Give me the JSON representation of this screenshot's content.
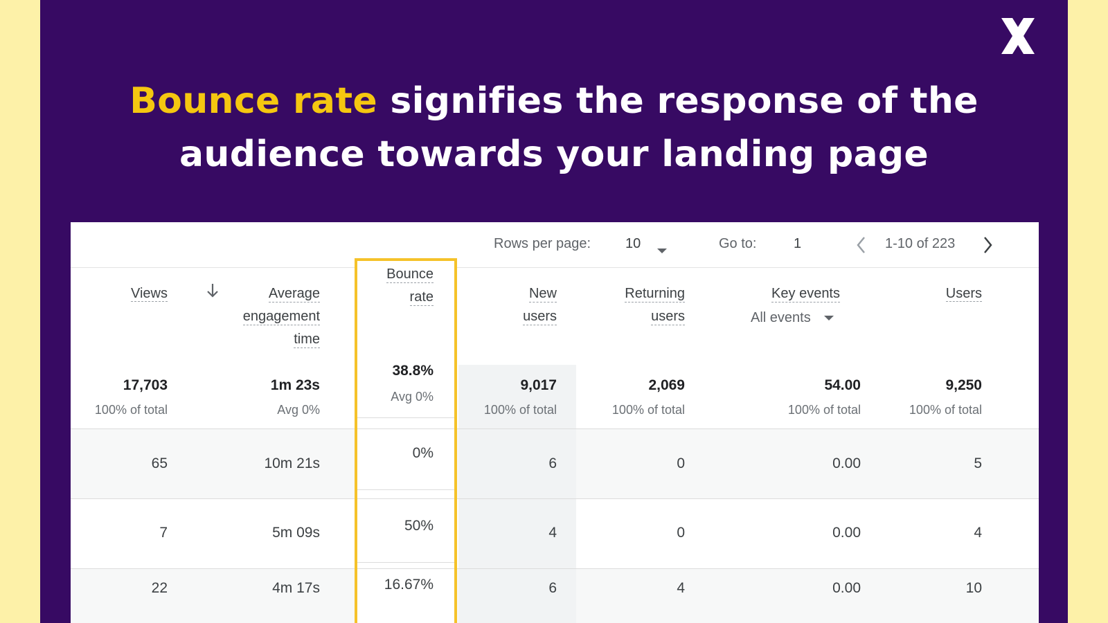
{
  "close": {
    "icon": "close-icon"
  },
  "headline": {
    "highlight": "Bounce rate",
    "line1_rest": " signifies the response of the",
    "line2": "audience towards your landing page"
  },
  "pager": {
    "rows_per_page_label": "Rows per page:",
    "rows_per_page_value": "10",
    "goto_label": "Go to:",
    "goto_value": "1",
    "range": "1-10 of 223"
  },
  "columns": {
    "views": "Views",
    "sort_icon": "arrow-down-icon",
    "avg_engagement": [
      "Average",
      "engagement",
      "time"
    ],
    "bounce_rate": [
      "Bounce",
      "rate"
    ],
    "new_users": [
      "New",
      "users"
    ],
    "returning_users": [
      "Returning",
      "users"
    ],
    "key_events": "Key events",
    "key_events_filter": "All events",
    "users": "Users"
  },
  "totals": {
    "views": {
      "value": "17,703",
      "sub": "100% of total"
    },
    "avg_engagement": {
      "value": "1m 23s",
      "sub": "Avg 0%"
    },
    "bounce_rate": {
      "value": "38.8%",
      "sub": "Avg 0%"
    },
    "new_users": {
      "value": "9,017",
      "sub": "100% of total"
    },
    "returning_users": {
      "value": "2,069",
      "sub": "100% of total"
    },
    "key_events": {
      "value": "54.00",
      "sub": "100% of total"
    },
    "users": {
      "value": "9,250",
      "sub": "100% of total"
    }
  },
  "rows": [
    {
      "views": "65",
      "avg_engagement": "10m 21s",
      "bounce_rate": "0%",
      "new_users": "6",
      "returning_users": "0",
      "key_events": "0.00",
      "users": "5"
    },
    {
      "views": "7",
      "avg_engagement": "5m 09s",
      "bounce_rate": "50%",
      "new_users": "4",
      "returning_users": "0",
      "key_events": "0.00",
      "users": "4"
    },
    {
      "views": "22",
      "avg_engagement": "4m 17s",
      "bounce_rate": "16.67%",
      "new_users": "6",
      "returning_users": "4",
      "key_events": "0.00",
      "users": "10"
    }
  ],
  "colors": {
    "background": "#fdf1a8",
    "panel": "#370a63",
    "highlight": "#f5c710",
    "bounce_box": "#f5c22a"
  }
}
